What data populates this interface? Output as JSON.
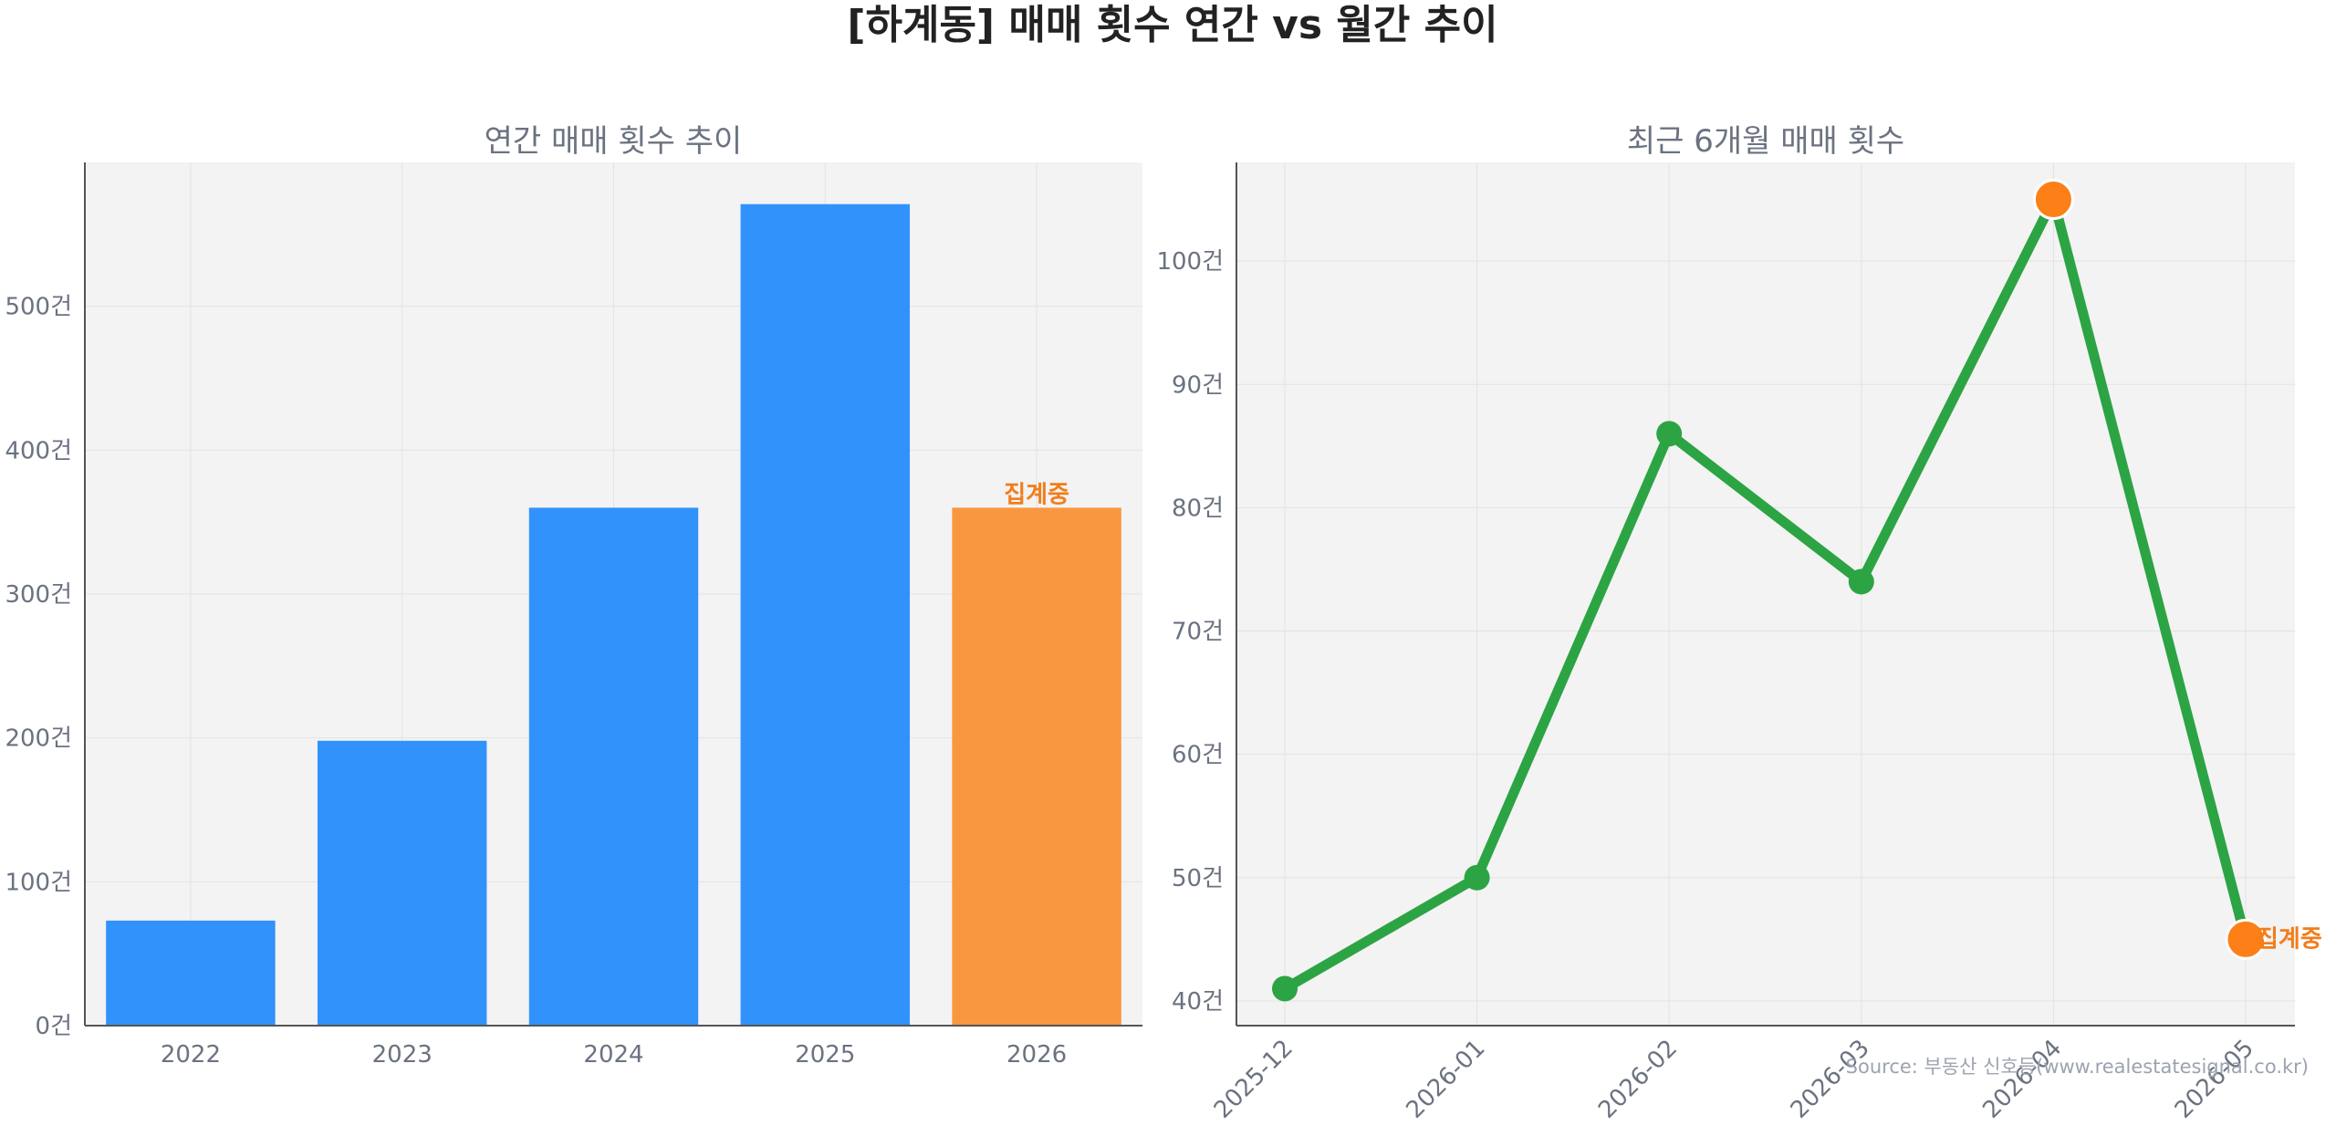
{
  "title": "[하계동] 매매 횟수 연간 vs 월간 추이",
  "source": "Source: 부동산 신호등(www.realestatesignal.co.kr)",
  "colors": {
    "bar": "#3192fc",
    "bar_highlight": "#f99740",
    "line": "#2ca444",
    "highlight_point": "#fd7f18",
    "annotation": "#f27d1b",
    "plot_bg": "#f3f3f3",
    "text_muted": "#6b7280"
  },
  "chart_data": [
    {
      "type": "bar",
      "title": "연간 매매 횟수 추이",
      "categories": [
        "2022",
        "2023",
        "2024",
        "2025",
        "2026"
      ],
      "values": [
        73,
        198,
        360,
        571,
        360
      ],
      "highlight_index": 4,
      "annotation": {
        "index": 4,
        "text": "집계중"
      },
      "ylim": [
        0,
        600
      ],
      "yticks": [
        0,
        100,
        200,
        300,
        400,
        500
      ],
      "ytick_labels": [
        "0건",
        "100건",
        "200건",
        "300건",
        "400건",
        "500건"
      ],
      "grid": true
    },
    {
      "type": "line",
      "title": "최근 6개월 매매 횟수",
      "x": [
        "2025-12",
        "2026-01",
        "2026-02",
        "2026-03",
        "2026-04",
        "2026-05"
      ],
      "values": [
        41,
        50,
        86,
        74,
        105,
        45
      ],
      "highlight_indices": [
        4,
        5
      ],
      "annotation": {
        "index": 5,
        "text": "집계중"
      },
      "ylim": [
        38,
        108
      ],
      "yticks": [
        40,
        50,
        60,
        70,
        80,
        90,
        100
      ],
      "ytick_labels": [
        "40건",
        "50건",
        "60건",
        "70건",
        "80건",
        "90건",
        "100건"
      ],
      "grid": true
    }
  ]
}
